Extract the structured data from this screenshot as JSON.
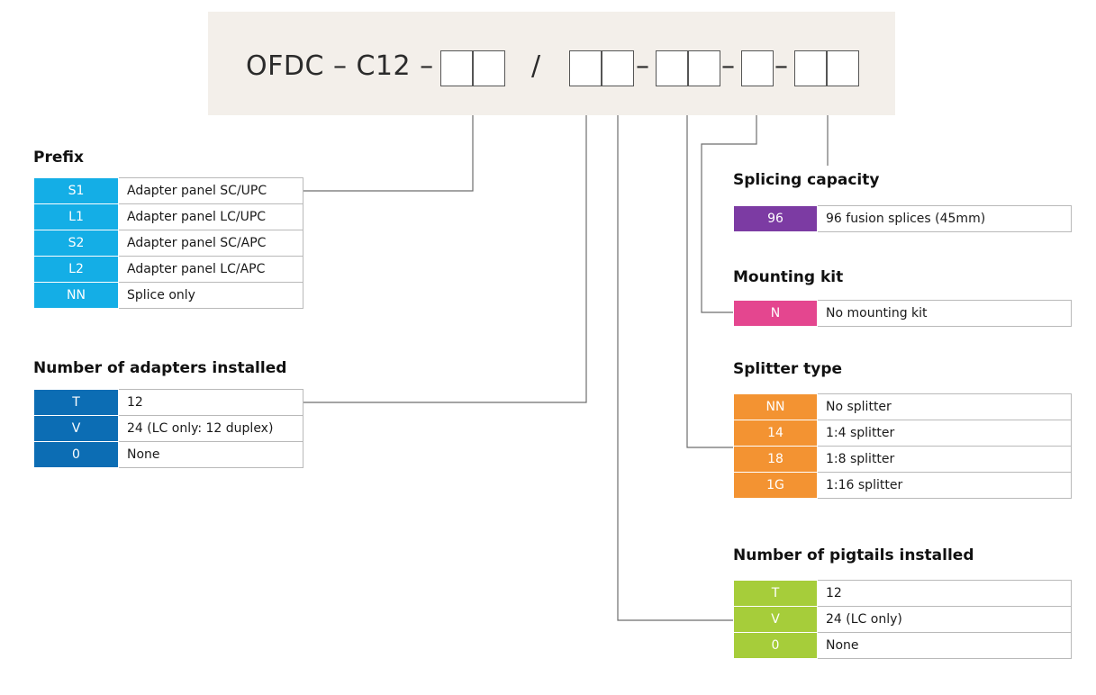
{
  "code": {
    "parts": [
      "OFDC – C12 –",
      "/",
      "–",
      "–",
      "–"
    ]
  },
  "sections": {
    "prefix": {
      "title": "Prefix",
      "color": "#14aee6",
      "rows": [
        {
          "code": "S1",
          "desc": "Adapter panel SC/UPC"
        },
        {
          "code": "L1",
          "desc": "Adapter panel LC/UPC"
        },
        {
          "code": "S2",
          "desc": "Adapter panel SC/APC"
        },
        {
          "code": "L2",
          "desc": "Adapter panel LC/APC"
        },
        {
          "code": "NN",
          "desc": "Splice only"
        }
      ]
    },
    "adapters": {
      "title": "Number of adapters installed",
      "color": "#0c6db4",
      "rows": [
        {
          "code": "T",
          "desc": "12"
        },
        {
          "code": "V",
          "desc": "24 (LC only: 12 duplex)"
        },
        {
          "code": "0",
          "desc": "None"
        }
      ]
    },
    "splicing": {
      "title": "Splicing capacity",
      "color": "#7c3ba3",
      "rows": [
        {
          "code": "96",
          "desc": "96 fusion splices (45mm)"
        }
      ]
    },
    "mounting": {
      "title": "Mounting kit",
      "color": "#e4468f",
      "rows": [
        {
          "code": "N",
          "desc": "No mounting kit"
        }
      ]
    },
    "splitter": {
      "title": "Splitter type",
      "color": "#f39332",
      "rows": [
        {
          "code": "NN",
          "desc": "No splitter"
        },
        {
          "code": "14",
          "desc": "1:4 splitter"
        },
        {
          "code": "18",
          "desc": "1:8 splitter"
        },
        {
          "code": "1G",
          "desc": "1:16 splitter"
        }
      ]
    },
    "pigtails": {
      "title": "Number of pigtails installed",
      "color": "#a6cd3a",
      "rows": [
        {
          "code": "T",
          "desc": "12"
        },
        {
          "code": "V",
          "desc": "24 (LC only)"
        },
        {
          "code": "0",
          "desc": "None"
        }
      ]
    }
  }
}
